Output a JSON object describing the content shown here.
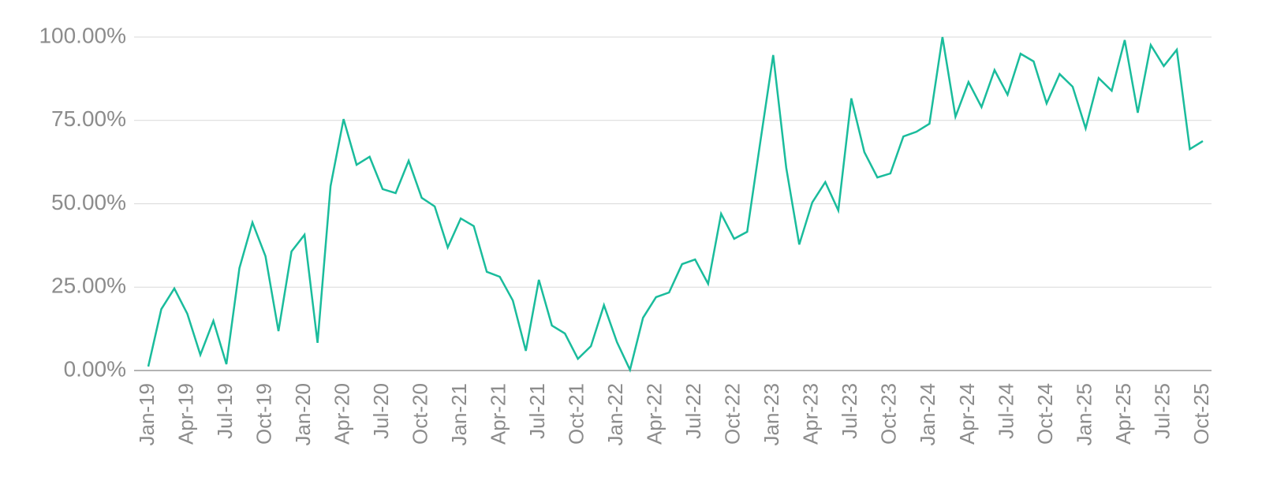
{
  "chart_data": {
    "type": "line",
    "categories": [
      "Jan-19",
      null,
      null,
      "Apr-19",
      null,
      null,
      "Jul-19",
      null,
      null,
      "Oct-19",
      null,
      null,
      "Jan-20",
      null,
      null,
      "Apr-20",
      null,
      null,
      "Jul-20",
      null,
      null,
      "Oct-20",
      null,
      null,
      "Jan-21",
      null,
      null,
      "Apr-21",
      null,
      null,
      "Jul-21",
      null,
      null,
      "Oct-21",
      null,
      null,
      "Jan-22",
      null,
      null,
      "Apr-22",
      null,
      null,
      "Jul-22",
      null,
      null,
      "Oct-22",
      null,
      null,
      "Jan-23",
      null,
      null,
      "Apr-23",
      null,
      null,
      "Jul-23",
      null,
      null,
      "Oct-23",
      null,
      null,
      "Jan-24",
      null,
      null,
      "Apr-24",
      null,
      null,
      "Jul-24",
      null,
      null,
      "Oct-24",
      null,
      null,
      "Jan-25",
      null,
      null,
      "Apr-25",
      null,
      null,
      "Jul-25",
      null,
      null,
      "Oct-25"
    ],
    "series": [
      {
        "color": "#1abc9c",
        "values": [
          1.2,
          18.4,
          24.6,
          17,
          4.7,
          14.9,
          1.9,
          30.7,
          44.4,
          34.3,
          11.8,
          35.7,
          40.7,
          8.3,
          55.3,
          75.4,
          61.7,
          64.1,
          54.4,
          53.2,
          62.9,
          51.8,
          49.2,
          36.9,
          45.6,
          43.3,
          29.6,
          28.1,
          21,
          5.9,
          27.2,
          13.5,
          11.1,
          3.5,
          7.3,
          19.6,
          8.5,
          0.2,
          15.8,
          22,
          23.4,
          31.9,
          33.3,
          26,
          47,
          39.5,
          41.6,
          68.3,
          94.6,
          60.8,
          37.8,
          50.4,
          56.5,
          48,
          81.6,
          65.5,
          57.9,
          59.1,
          70.2,
          71.6,
          74,
          100,
          76.1,
          86.5,
          79,
          90.1,
          82.7,
          95,
          92.7,
          80.1,
          88.9,
          85.1,
          72.6,
          87.7,
          83.9,
          99.1,
          77.3,
          97.6,
          91.3,
          96.2,
          66.4,
          68.8
        ]
      }
    ],
    "ylim": [
      0,
      100
    ],
    "yticks": [
      {
        "value": 0,
        "label": "0.00%"
      },
      {
        "value": 25,
        "label": "25.00%"
      },
      {
        "value": 50,
        "label": "50.00%"
      },
      {
        "value": 75,
        "label": "75.00%"
      },
      {
        "value": 100,
        "label": "100.00%"
      }
    ],
    "grid": true
  }
}
